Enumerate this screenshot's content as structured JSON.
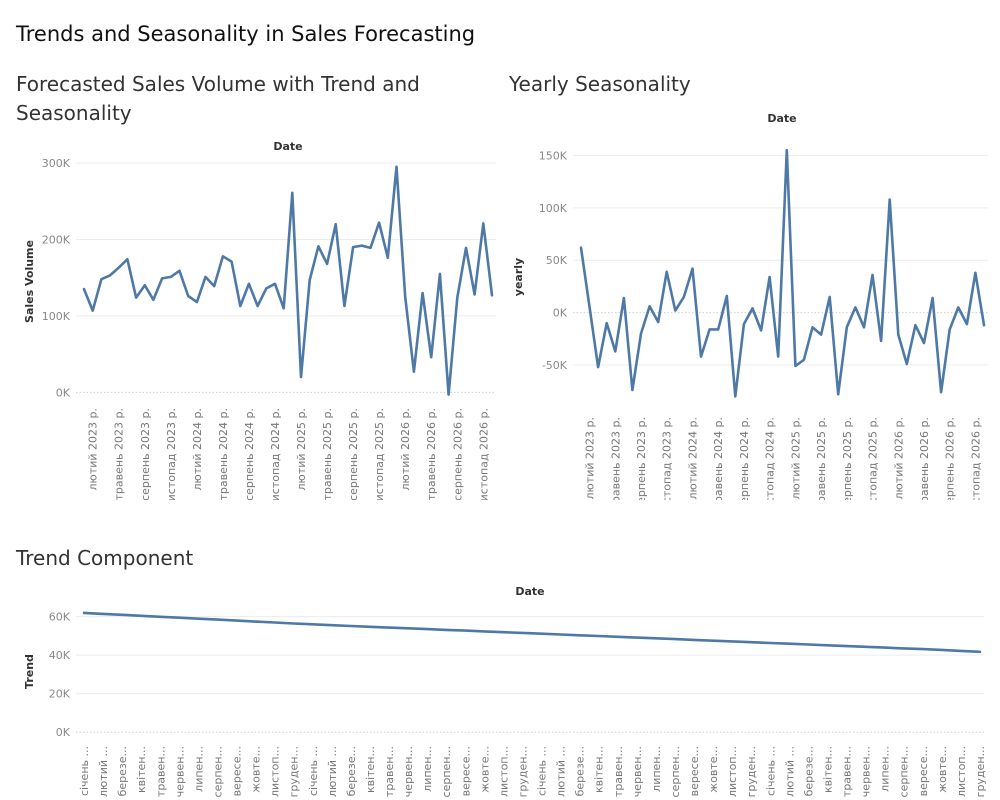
{
  "dashboard": {
    "title": "Trends and Seasonality in Sales Forecasting"
  },
  "chart_data": [
    {
      "type": "line",
      "title": "Forecasted Sales Volume with Trend and Seasonality",
      "header": "Date",
      "ylabel": "Sales Volume",
      "ylim": [
        -10000,
        300000
      ],
      "yticks": [
        0,
        100000,
        200000,
        300000
      ],
      "ytick_labels": [
        "0K",
        "100K",
        "200K",
        "300K"
      ],
      "grid": true,
      "x": [
        "2023-01",
        "2023-02",
        "2023-03",
        "2023-04",
        "2023-05",
        "2023-06",
        "2023-07",
        "2023-08",
        "2023-09",
        "2023-10",
        "2023-11",
        "2023-12",
        "2024-01",
        "2024-02",
        "2024-03",
        "2024-04",
        "2024-05",
        "2024-06",
        "2024-07",
        "2024-08",
        "2024-09",
        "2024-10",
        "2024-11",
        "2024-12",
        "2025-01",
        "2025-02",
        "2025-03",
        "2025-04",
        "2025-05",
        "2025-06",
        "2025-07",
        "2025-08",
        "2025-09",
        "2025-10",
        "2025-11",
        "2025-12",
        "2026-01",
        "2026-02",
        "2026-03",
        "2026-04",
        "2026-05",
        "2026-06",
        "2026-07",
        "2026-08",
        "2026-09",
        "2026-10",
        "2026-11",
        "2026-12"
      ],
      "xtick_labels": [
        {
          "index": 1,
          "label": "лютий 2023 р."
        },
        {
          "index": 4,
          "label": "травень 2023 р."
        },
        {
          "index": 7,
          "label": "серпень 2023 р."
        },
        {
          "index": 10,
          "label": "листопад 2023 р."
        },
        {
          "index": 13,
          "label": "лютий 2024 р."
        },
        {
          "index": 16,
          "label": "травень 2024 р."
        },
        {
          "index": 19,
          "label": "серпень 2024 р."
        },
        {
          "index": 22,
          "label": "листопад 2024 р."
        },
        {
          "index": 25,
          "label": "лютий 2025 р."
        },
        {
          "index": 28,
          "label": "травень 2025 р."
        },
        {
          "index": 31,
          "label": "серпень 2025 р."
        },
        {
          "index": 34,
          "label": "листопад 2025 р."
        },
        {
          "index": 37,
          "label": "лютий 2026 р."
        },
        {
          "index": 40,
          "label": "травень 2026 р."
        },
        {
          "index": 43,
          "label": "серпень 2026 р."
        },
        {
          "index": 46,
          "label": "листопад 2026 р."
        }
      ],
      "series": [
        {
          "values": [
            135000,
            107000,
            148000,
            153000,
            163000,
            174000,
            124000,
            140000,
            121000,
            149000,
            151000,
            159000,
            126000,
            118000,
            151000,
            139000,
            178000,
            171000,
            113000,
            142000,
            113000,
            136000,
            142000,
            110000,
            261000,
            20000,
            147000,
            191000,
            168000,
            220000,
            113000,
            190000,
            192000,
            189000,
            222000,
            176000,
            295000,
            125000,
            27000,
            130000,
            46000,
            155000,
            -3000,
            124000,
            189000,
            128000,
            221000,
            127000
          ]
        }
      ]
    },
    {
      "type": "line",
      "title": "Yearly Seasonality",
      "header": "Date",
      "ylabel": "yearly",
      "ylim": [
        -92000,
        160000
      ],
      "yticks": [
        -50000,
        0,
        50000,
        100000,
        150000
      ],
      "ytick_labels": [
        "-50K",
        "0K",
        "50K",
        "100K",
        "150K"
      ],
      "grid": true,
      "x": [
        "2023-01",
        "2023-02",
        "2023-03",
        "2023-04",
        "2023-05",
        "2023-06",
        "2023-07",
        "2023-08",
        "2023-09",
        "2023-10",
        "2023-11",
        "2023-12",
        "2024-01",
        "2024-02",
        "2024-03",
        "2024-04",
        "2024-05",
        "2024-06",
        "2024-07",
        "2024-08",
        "2024-09",
        "2024-10",
        "2024-11",
        "2024-12",
        "2025-01",
        "2025-02",
        "2025-03",
        "2025-04",
        "2025-05",
        "2025-06",
        "2025-07",
        "2025-08",
        "2025-09",
        "2025-10",
        "2025-11",
        "2025-12",
        "2026-01",
        "2026-02",
        "2026-03",
        "2026-04",
        "2026-05",
        "2026-06",
        "2026-07",
        "2026-08",
        "2026-09",
        "2026-10",
        "2026-11",
        "2026-12"
      ],
      "xtick_labels": [
        {
          "index": 1,
          "label": "лютий 2023 р."
        },
        {
          "index": 4,
          "label": "травень 2023 р."
        },
        {
          "index": 7,
          "label": "серпень 2023 р."
        },
        {
          "index": 10,
          "label": "листопад 2023 р."
        },
        {
          "index": 13,
          "label": "лютий 2024 р."
        },
        {
          "index": 16,
          "label": "травень 2024 р."
        },
        {
          "index": 19,
          "label": "серпень 2024 р."
        },
        {
          "index": 22,
          "label": "листопад 2024 р."
        },
        {
          "index": 25,
          "label": "лютий 2025 р."
        },
        {
          "index": 28,
          "label": "травень 2025 р."
        },
        {
          "index": 31,
          "label": "серпень 2025 р."
        },
        {
          "index": 34,
          "label": "листопад 2025 р."
        },
        {
          "index": 37,
          "label": "лютий 2026 р."
        },
        {
          "index": 40,
          "label": "травень 2026 р."
        },
        {
          "index": 43,
          "label": "серпень 2026 р."
        },
        {
          "index": 46,
          "label": "листопад 2026 р."
        }
      ],
      "series": [
        {
          "values": [
            62000,
            5000,
            -52000,
            -10000,
            -37000,
            14000,
            -74000,
            -20000,
            6000,
            -9000,
            39000,
            2000,
            15000,
            42000,
            -42000,
            -16000,
            -16000,
            16000,
            -80000,
            -11000,
            4000,
            -17000,
            34000,
            -42000,
            155000,
            -51000,
            -45000,
            -14000,
            -21000,
            15000,
            -78000,
            -14000,
            5000,
            -14000,
            36000,
            -27000,
            108000,
            -21000,
            -49000,
            -12000,
            -29000,
            14000,
            -76000,
            -16000,
            5000,
            -11000,
            38000,
            -12000
          ]
        }
      ]
    },
    {
      "type": "line",
      "title": "Trend Component",
      "header": "Date",
      "ylabel": "Trend",
      "ylim": [
        -3000,
        66000
      ],
      "yticks": [
        0,
        20000,
        40000,
        60000
      ],
      "ytick_labels": [
        "0K",
        "20K",
        "40K",
        "60K"
      ],
      "grid": true,
      "x": [
        "2023-01",
        "2023-02",
        "2023-03",
        "2023-04",
        "2023-05",
        "2023-06",
        "2023-07",
        "2023-08",
        "2023-09",
        "2023-10",
        "2023-11",
        "2023-12",
        "2024-01",
        "2024-02",
        "2024-03",
        "2024-04",
        "2024-05",
        "2024-06",
        "2024-07",
        "2024-08",
        "2024-09",
        "2024-10",
        "2024-11",
        "2024-12",
        "2025-01",
        "2025-02",
        "2025-03",
        "2025-04",
        "2025-05",
        "2025-06",
        "2025-07",
        "2025-08",
        "2025-09",
        "2025-10",
        "2025-11",
        "2025-12",
        "2026-01",
        "2026-02",
        "2026-03",
        "2026-04",
        "2026-05",
        "2026-06",
        "2026-07",
        "2026-08",
        "2026-09",
        "2026-10",
        "2026-11",
        "2026-12"
      ],
      "xtick_labels": [
        {
          "index": 0,
          "label": "січень ..."
        },
        {
          "index": 1,
          "label": "лютий ..."
        },
        {
          "index": 2,
          "label": "березе..."
        },
        {
          "index": 3,
          "label": "квітен..."
        },
        {
          "index": 4,
          "label": "травен..."
        },
        {
          "index": 5,
          "label": "червен..."
        },
        {
          "index": 6,
          "label": "липен..."
        },
        {
          "index": 7,
          "label": "серпен..."
        },
        {
          "index": 8,
          "label": "вересе..."
        },
        {
          "index": 9,
          "label": "жовте..."
        },
        {
          "index": 10,
          "label": "листоп..."
        },
        {
          "index": 11,
          "label": "груден..."
        },
        {
          "index": 12,
          "label": "січень ..."
        },
        {
          "index": 13,
          "label": "лютий ..."
        },
        {
          "index": 14,
          "label": "березе..."
        },
        {
          "index": 15,
          "label": "квітен..."
        },
        {
          "index": 16,
          "label": "травен..."
        },
        {
          "index": 17,
          "label": "червен..."
        },
        {
          "index": 18,
          "label": "липен..."
        },
        {
          "index": 19,
          "label": "серпен..."
        },
        {
          "index": 20,
          "label": "вересе..."
        },
        {
          "index": 21,
          "label": "жовте..."
        },
        {
          "index": 22,
          "label": "листоп..."
        },
        {
          "index": 23,
          "label": "груден..."
        },
        {
          "index": 24,
          "label": "січень ..."
        },
        {
          "index": 25,
          "label": "лютий ..."
        },
        {
          "index": 26,
          "label": "березе..."
        },
        {
          "index": 27,
          "label": "квітен..."
        },
        {
          "index": 28,
          "label": "травен..."
        },
        {
          "index": 29,
          "label": "червен..."
        },
        {
          "index": 30,
          "label": "липен..."
        },
        {
          "index": 31,
          "label": "серпен..."
        },
        {
          "index": 32,
          "label": "вересе..."
        },
        {
          "index": 33,
          "label": "жовте..."
        },
        {
          "index": 34,
          "label": "листоп..."
        },
        {
          "index": 35,
          "label": "груден..."
        },
        {
          "index": 36,
          "label": "січень ..."
        },
        {
          "index": 37,
          "label": "лютий ..."
        },
        {
          "index": 38,
          "label": "березе..."
        },
        {
          "index": 39,
          "label": "квітен..."
        },
        {
          "index": 40,
          "label": "травен..."
        },
        {
          "index": 41,
          "label": "червен..."
        },
        {
          "index": 42,
          "label": "липен..."
        },
        {
          "index": 43,
          "label": "серпен..."
        },
        {
          "index": 44,
          "label": "вересе..."
        },
        {
          "index": 45,
          "label": "жовте..."
        },
        {
          "index": 46,
          "label": "листоп..."
        },
        {
          "index": 47,
          "label": "груден..."
        }
      ],
      "series": [
        {
          "values": [
            61900,
            61400,
            60900,
            60400,
            59900,
            59400,
            58900,
            58400,
            57900,
            57400,
            56900,
            56400,
            56000,
            55500,
            55100,
            54700,
            54300,
            53900,
            53500,
            53100,
            52700,
            52300,
            51900,
            51500,
            51100,
            50700,
            50300,
            49900,
            49500,
            49100,
            48700,
            48300,
            47900,
            47500,
            47100,
            46700,
            46300,
            45900,
            45500,
            45100,
            44700,
            44300,
            43900,
            43500,
            43100,
            42700,
            42200,
            41700
          ]
        }
      ]
    }
  ],
  "colors": {
    "series": "#4e79a7",
    "grid": "#ececec"
  }
}
